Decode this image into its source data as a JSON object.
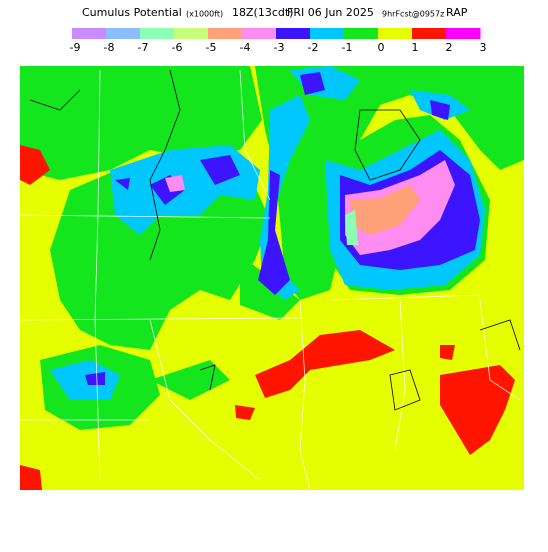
{
  "header": {
    "title": "Cumulus Potential",
    "units": "(x1000ft)",
    "time": "18Z(13cdt)",
    "date": "FRI 06 Jun 2025",
    "forecast": "9hrFcst@0957z",
    "model": "RAP"
  },
  "legend": {
    "labels": [
      -9,
      -8,
      -7,
      -6,
      -5,
      -4,
      -3,
      -2,
      -1,
      0,
      1,
      2,
      3
    ],
    "colors": [
      "#c88cff",
      "#8cbeff",
      "#8cffb4",
      "#c8ff78",
      "#ffa078",
      "#ff8cf0",
      "#3c14ff",
      "#00c8ff",
      "#14e61e",
      "#e6ff00",
      "#ff1400",
      "#ff00ff"
    ]
  }
}
